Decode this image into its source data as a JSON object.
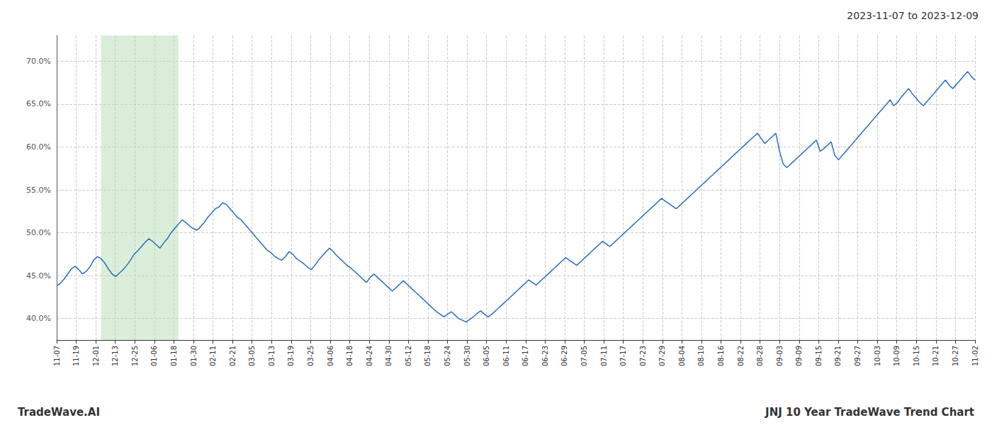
{
  "chart_data": {
    "type": "line",
    "title": "2023-11-07 to 2023-12-09",
    "annotations": [
      "TradeWave.AI",
      "JNJ 10 Year TradeWave Trend Chart"
    ],
    "color": "#2a6ebb",
    "grid": true,
    "highlight": {
      "x": [
        12,
        33
      ],
      "color": "#daeeda"
    },
    "xlim": [
      0,
      249
    ],
    "xticks": [
      {
        "value": 0,
        "label": "11-07"
      },
      {
        "value": 5.2979,
        "label": "11-19"
      },
      {
        "value": 10.5957,
        "label": "12-01"
      },
      {
        "value": 15.8936,
        "label": "12-13"
      },
      {
        "value": 21.1915,
        "label": "12-25"
      },
      {
        "value": 26.4894,
        "label": "01-06"
      },
      {
        "value": 31.7872,
        "label": "01-18"
      },
      {
        "value": 37.0851,
        "label": "01-30"
      },
      {
        "value": 42.383,
        "label": "02-11"
      },
      {
        "value": 47.6809,
        "label": "02-21"
      },
      {
        "value": 52.9787,
        "label": "03-05"
      },
      {
        "value": 58.2766,
        "label": "03-13"
      },
      {
        "value": 63.5745,
        "label": "03-19"
      },
      {
        "value": 68.8723,
        "label": "03-25"
      },
      {
        "value": 74.1702,
        "label": "04-06"
      },
      {
        "value": 79.4681,
        "label": "04-18"
      },
      {
        "value": 84.766,
        "label": "04-24"
      },
      {
        "value": 90.0638,
        "label": "04-30"
      },
      {
        "value": 95.3617,
        "label": "05-12"
      },
      {
        "value": 100.6596,
        "label": "05-18"
      },
      {
        "value": 105.9574,
        "label": "05-24"
      },
      {
        "value": 111.2553,
        "label": "05-30"
      },
      {
        "value": 116.5532,
        "label": "06-05"
      },
      {
        "value": 121.8511,
        "label": "06-11"
      },
      {
        "value": 127.1489,
        "label": "06-17"
      },
      {
        "value": 132.4468,
        "label": "06-23"
      },
      {
        "value": 137.7447,
        "label": "06-29"
      },
      {
        "value": 143.0426,
        "label": "07-05"
      },
      {
        "value": 148.3404,
        "label": "07-11"
      },
      {
        "value": 153.6383,
        "label": "07-17"
      },
      {
        "value": 158.9362,
        "label": "07-23"
      },
      {
        "value": 164.234,
        "label": "07-29"
      },
      {
        "value": 169.5319,
        "label": "08-04"
      },
      {
        "value": 174.8298,
        "label": "08-10"
      },
      {
        "value": 180.1277,
        "label": "08-16"
      },
      {
        "value": 185.4255,
        "label": "08-22"
      },
      {
        "value": 190.7234,
        "label": "08-28"
      },
      {
        "value": 196.0213,
        "label": "09-03"
      },
      {
        "value": 201.3191,
        "label": "09-09"
      },
      {
        "value": 206.617,
        "label": "09-15"
      },
      {
        "value": 211.9149,
        "label": "09-21"
      },
      {
        "value": 217.2128,
        "label": "09-27"
      },
      {
        "value": 222.5106,
        "label": "10-03"
      },
      {
        "value": 227.8085,
        "label": "10-09"
      },
      {
        "value": 233.1064,
        "label": "10-15"
      },
      {
        "value": 238.4043,
        "label": "10-21"
      },
      {
        "value": 243.7021,
        "label": "10-27"
      },
      {
        "value": 249,
        "label": "11-02"
      }
    ],
    "ylim": [
      37.5,
      73.0
    ],
    "yticks": [
      {
        "value": 40.0,
        "label": "40.0%"
      },
      {
        "value": 45.0,
        "label": "45.0%"
      },
      {
        "value": 50.0,
        "label": "50.0%"
      },
      {
        "value": 55.0,
        "label": "55.0%"
      },
      {
        "value": 60.0,
        "label": "60.0%"
      },
      {
        "value": 65.0,
        "label": "65.0%"
      },
      {
        "value": 70.0,
        "label": "70.0%"
      }
    ],
    "values": [
      43.8,
      44.1,
      44.6,
      45.2,
      45.8,
      46.1,
      45.7,
      45.2,
      45.5,
      46.0,
      46.8,
      47.2,
      47.0,
      46.5,
      45.8,
      45.2,
      44.9,
      45.3,
      45.7,
      46.2,
      46.8,
      47.5,
      47.9,
      48.4,
      48.9,
      49.3,
      49.0,
      48.6,
      48.2,
      48.8,
      49.3,
      50.0,
      50.5,
      51.0,
      51.5,
      51.2,
      50.8,
      50.5,
      50.3,
      50.7,
      51.2,
      51.8,
      52.3,
      52.8,
      53.0,
      53.5,
      53.3,
      52.8,
      52.3,
      51.8,
      51.5,
      51.0,
      50.5,
      50.0,
      49.5,
      49.0,
      48.5,
      48.0,
      47.7,
      47.3,
      47.0,
      46.8,
      47.2,
      47.8,
      47.5,
      47.0,
      46.7,
      46.4,
      46.0,
      45.7,
      46.2,
      46.8,
      47.3,
      47.8,
      48.2,
      47.8,
      47.3,
      46.9,
      46.5,
      46.1,
      45.8,
      45.4,
      45.0,
      44.6,
      44.2,
      44.8,
      45.2,
      44.8,
      44.4,
      44.0,
      43.6,
      43.2,
      43.6,
      44.0,
      44.4,
      44.0,
      43.6,
      43.2,
      42.8,
      42.4,
      42.0,
      41.6,
      41.2,
      40.8,
      40.5,
      40.2,
      40.5,
      40.8,
      40.4,
      40.0,
      39.8,
      39.6,
      39.9,
      40.2,
      40.6,
      40.9,
      40.5,
      40.2,
      40.5,
      40.9,
      41.3,
      41.7,
      42.1,
      42.5,
      42.9,
      43.3,
      43.7,
      44.1,
      44.5,
      44.2,
      43.9,
      44.3,
      44.7,
      45.1,
      45.5,
      45.9,
      46.3,
      46.7,
      47.1,
      46.8,
      46.5,
      46.2,
      46.6,
      47.0,
      47.4,
      47.8,
      48.2,
      48.6,
      49.0,
      48.7,
      48.4,
      48.8,
      49.2,
      49.6,
      50.0,
      50.4,
      50.8,
      51.2,
      51.6,
      52.0,
      52.4,
      52.8,
      53.2,
      53.6,
      54.0,
      53.7,
      53.4,
      53.1,
      52.8,
      53.2,
      53.6,
      54.0,
      54.4,
      54.8,
      55.2,
      55.6,
      56.0,
      56.4,
      56.8,
      57.2,
      57.6,
      58.0,
      58.4,
      58.8,
      59.2,
      59.6,
      60.0,
      60.4,
      60.8,
      61.2,
      61.6,
      61.0,
      60.4,
      60.8,
      61.2,
      61.6,
      59.5,
      58.0,
      57.6,
      58.0,
      58.4,
      58.8,
      59.2,
      59.6,
      60.0,
      60.4,
      60.8,
      59.5,
      59.8,
      60.2,
      60.6,
      59.0,
      58.5,
      59.0,
      59.5,
      60.0,
      60.5,
      61.0,
      61.5,
      62.0,
      62.5,
      63.0,
      63.5,
      64.0,
      64.5,
      65.0,
      65.5,
      64.8,
      65.2,
      65.8,
      66.3,
      66.8,
      66.2,
      65.7,
      65.2,
      64.8,
      65.3,
      65.8,
      66.3,
      66.8,
      67.3,
      67.8,
      67.2,
      66.8,
      67.3,
      67.8,
      68.3,
      68.8,
      68.2,
      67.8
    ]
  }
}
